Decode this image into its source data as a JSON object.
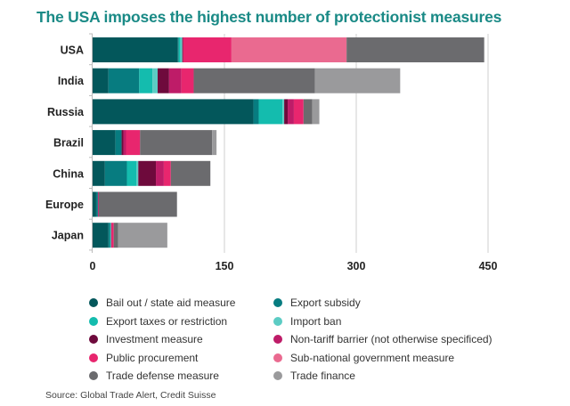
{
  "chart_data": {
    "type": "bar",
    "orientation": "horizontal",
    "stacked": true,
    "title": "The USA imposes the highest number of protectionist measures",
    "xlabel": "",
    "ylabel": "",
    "xlim": [
      0,
      450
    ],
    "xticks": [
      0,
      150,
      300,
      450
    ],
    "grid": true,
    "legend_position": "bottom",
    "categories": [
      "USA",
      "India",
      "Russia",
      "Brazil",
      "China",
      "Europe",
      "Japan"
    ],
    "series": [
      {
        "name": "Bail out / state aid measure",
        "color": "#03575b",
        "values": [
          97,
          18,
          183,
          26,
          14,
          4,
          18
        ]
      },
      {
        "name": "Export subsidy",
        "color": "#077c80",
        "values": [
          1,
          35,
          6,
          7,
          25,
          2,
          2
        ]
      },
      {
        "name": "Export taxes or restriction",
        "color": "#14bcae",
        "values": [
          2,
          15,
          27,
          0,
          11,
          0,
          1
        ]
      },
      {
        "name": "Import ban",
        "color": "#5cccc4",
        "values": [
          2,
          6,
          2,
          0,
          2,
          0,
          0
        ]
      },
      {
        "name": "Investment measure",
        "color": "#6e0a3c",
        "values": [
          1,
          13,
          4,
          2,
          20,
          0,
          0
        ]
      },
      {
        "name": "Non-tariff barrier (not otherwise specificed)",
        "color": "#be1c68",
        "values": [
          0,
          14,
          7,
          3,
          9,
          1,
          0
        ]
      },
      {
        "name": "Public procurement",
        "color": "#e8266e",
        "values": [
          55,
          14,
          11,
          16,
          8,
          0,
          3
        ]
      },
      {
        "name": "Sub-national government measure",
        "color": "#ea6a90",
        "values": [
          131,
          0,
          0,
          0,
          0,
          0,
          0
        ]
      },
      {
        "name": "Trade defense measure",
        "color": "#6b6b6e",
        "values": [
          156,
          138,
          10,
          82,
          45,
          89,
          5
        ]
      },
      {
        "name": "Trade finance",
        "color": "#9a9a9c",
        "values": [
          1,
          97,
          8,
          5,
          0,
          0,
          56
        ]
      }
    ],
    "source": "Source: Global Trade Alert, Credit Suisse"
  }
}
